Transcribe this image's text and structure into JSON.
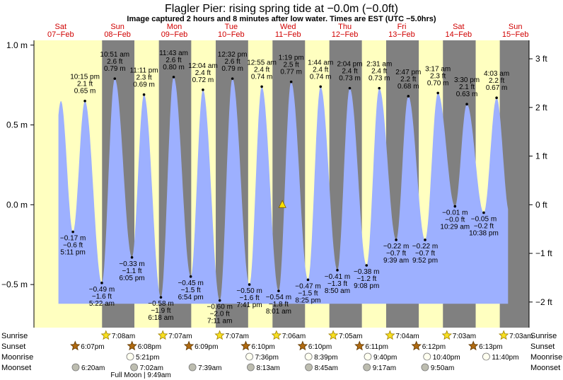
{
  "title": "Flagler Pier: rising  spring tide at −0.0m (−0.0ft)",
  "subtitle": "Image captured 2 hours and 8 minutes after low water. Times are EST (UTC −5.0hrs)",
  "colors": {
    "day": "#ffffc0",
    "night": "#808080",
    "water": "#9db0ff",
    "date_text": "#d00000",
    "marker": "#f8e000"
  },
  "chart_data": {
    "type": "area",
    "x_unit": "days since 2026-02-07 00:00 EST",
    "ylabel_left": "m",
    "ylabel_right": "ft",
    "ylim": [
      -0.77,
      1.03
    ],
    "xlim": [
      -0.47,
      8.24
    ],
    "left_ticks": [
      {
        "v": 1.0,
        "label": "1.0 m"
      },
      {
        "v": 0.5,
        "label": "0.5 m"
      },
      {
        "v": 0.0,
        "label": "0.0 m"
      },
      {
        "v": -0.5,
        "label": "−0.5 m"
      }
    ],
    "right_ticks": [
      {
        "v": 0.9144,
        "label": "3 ft"
      },
      {
        "v": 0.6096,
        "label": "2 ft"
      },
      {
        "v": 0.3048,
        "label": "1 ft"
      },
      {
        "v": 0.0,
        "label": "0 ft"
      },
      {
        "v": -0.3048,
        "label": "−1 ft"
      },
      {
        "v": -0.6096,
        "label": "−2 ft"
      }
    ],
    "days": [
      {
        "day": "Sat",
        "date": "07−Feb"
      },
      {
        "day": "Sun",
        "date": "08−Feb"
      },
      {
        "day": "Mon",
        "date": "09−Feb"
      },
      {
        "day": "Tue",
        "date": "10−Feb"
      },
      {
        "day": "Wed",
        "date": "11−Feb"
      },
      {
        "day": "Thu",
        "date": "12−Feb"
      },
      {
        "day": "Fri",
        "date": "13−Feb"
      },
      {
        "day": "Sat",
        "date": "14−Feb"
      },
      {
        "day": "Sun",
        "date": "15−Feb"
      }
    ],
    "now": {
      "x": 3.9,
      "y": 0.0
    },
    "high_tides": [
      {
        "x": 0.427,
        "m": "0.65 m",
        "ft": "2.1 ft",
        "time": "10:15 pm",
        "y": 0.65
      },
      {
        "x": 0.952,
        "m": "0.79 m",
        "ft": "2.6 ft",
        "time": "10:51 am",
        "y": 0.79
      },
      {
        "x": 1.466,
        "m": "0.69 m",
        "ft": "2.3 ft",
        "time": "11:11 pm",
        "y": 0.69
      },
      {
        "x": 1.988,
        "m": "0.80 m",
        "ft": "2.6 ft",
        "time": "11:43 am",
        "y": 0.8
      },
      {
        "x": 2.503,
        "m": "0.72 m",
        "ft": "2.4 ft",
        "time": "12:04 am",
        "y": 0.72
      },
      {
        "x": 3.022,
        "m": "0.79 m",
        "ft": "2.6 ft",
        "time": "12:32 pm",
        "y": 0.79
      },
      {
        "x": 3.538,
        "m": "0.74 m",
        "ft": "2.4 ft",
        "time": "12:55 am",
        "y": 0.74
      },
      {
        "x": 4.055,
        "m": "0.77 m",
        "ft": "2.5 ft",
        "time": "1:19 pm",
        "y": 0.77
      },
      {
        "x": 4.572,
        "m": "0.74 m",
        "ft": "2.4 ft",
        "time": "1:44 am",
        "y": 0.74
      },
      {
        "x": 5.086,
        "m": "0.73 m",
        "ft": "2.4 ft",
        "time": "2:04 pm",
        "y": 0.73
      },
      {
        "x": 5.605,
        "m": "0.73 m",
        "ft": "2.4 ft",
        "time": "2:31 am",
        "y": 0.73
      },
      {
        "x": 6.116,
        "m": "0.68 m",
        "ft": "2.2 ft",
        "time": "2:47 pm",
        "y": 0.68
      },
      {
        "x": 6.637,
        "m": "0.70 m",
        "ft": "2.3 ft",
        "time": "3:17 am",
        "y": 0.7
      },
      {
        "x": 7.146,
        "m": "0.63 m",
        "ft": "2.1 ft",
        "time": "3:30 pm",
        "y": 0.63
      },
      {
        "x": 7.669,
        "m": "0.67 m",
        "ft": "2.2 ft",
        "time": "4:03 am",
        "y": 0.67
      }
    ],
    "low_tides": [
      {
        "x": 0.216,
        "m": "−0.17 m",
        "ft": "−0.6 ft",
        "time": "5:11 pm",
        "y": -0.17
      },
      {
        "x": 0.724,
        "m": "−0.49 m",
        "ft": "−1.6 ft",
        "time": "5:22 am",
        "y": -0.49
      },
      {
        "x": 1.254,
        "m": "−0.33 m",
        "ft": "−1.1 ft",
        "time": "6:05 pm",
        "y": -0.33
      },
      {
        "x": 1.763,
        "m": "−0.58 m",
        "ft": "−1.9 ft",
        "time": "6:18 am",
        "y": -0.58
      },
      {
        "x": 2.288,
        "m": "−0.45 m",
        "ft": "−1.5 ft",
        "time": "6:54 pm",
        "y": -0.45
      },
      {
        "x": 2.799,
        "m": "−0.60 m",
        "ft": "−2.0 ft",
        "time": "7:11 am",
        "y": -0.6
      },
      {
        "x": 3.32,
        "m": "−0.50 m",
        "ft": "−1.6 ft",
        "time": "7:41 pm",
        "y": -0.5
      },
      {
        "x": 3.834,
        "m": "−0.54 m",
        "ft": "−1.8 ft",
        "time": "8:01 am",
        "y": -0.54
      },
      {
        "x": 4.351,
        "m": "−0.47 m",
        "ft": "−1.5 ft",
        "time": "8:25 pm",
        "y": -0.47
      },
      {
        "x": 4.868,
        "m": "−0.41 m",
        "ft": "−1.3 ft",
        "time": "8:50 am",
        "y": -0.41
      },
      {
        "x": 5.381,
        "m": "−0.38 m",
        "ft": "−1.2 ft",
        "time": "9:08 pm",
        "y": -0.38
      },
      {
        "x": 5.902,
        "m": "−0.22 m",
        "ft": "−0.7 ft",
        "time": "9:39 am",
        "y": -0.22
      },
      {
        "x": 6.411,
        "m": "−0.22 m",
        "ft": "−0.7 ft",
        "time": "9:52 pm",
        "y": -0.22
      },
      {
        "x": 6.937,
        "m": "−0.01 m",
        "ft": "−0.0 ft",
        "time": "10:29 am",
        "y": -0.01
      },
      {
        "x": 7.443,
        "m": "−0.05 m",
        "ft": "−0.2 ft",
        "time": "10:38 pm",
        "y": -0.05
      }
    ],
    "night_bands": [
      [
        0.728,
        1.297
      ],
      [
        1.728,
        2.297
      ],
      [
        2.728,
        3.298
      ],
      [
        3.727,
        4.299
      ],
      [
        4.727,
        5.299
      ],
      [
        5.726,
        6.3
      ],
      [
        6.725,
        7.301
      ],
      [
        7.725,
        8.24
      ]
    ],
    "water_extent": [
      -0.04,
      7.87
    ],
    "bottom_rows": {
      "labels": [
        "Sunrise",
        "Sunset",
        "Moonrise",
        "Moonset"
      ],
      "sunrise": [
        {
          "x": 0.797,
          "label": "7:08am"
        },
        {
          "x": 1.797,
          "label": "7:07am"
        },
        {
          "x": 2.797,
          "label": "7:07am"
        },
        {
          "x": 3.796,
          "label": "7:06am"
        },
        {
          "x": 4.795,
          "label": "7:05am"
        },
        {
          "x": 5.794,
          "label": "7:04am"
        },
        {
          "x": 6.794,
          "label": "7:03am"
        },
        {
          "x": 7.794,
          "label": "7:03am"
        }
      ],
      "sunset": [
        {
          "x": 0.255,
          "label": "6:07pm"
        },
        {
          "x": 1.256,
          "label": "6:08pm"
        },
        {
          "x": 2.256,
          "label": "6:09pm"
        },
        {
          "x": 3.257,
          "label": "6:10pm"
        },
        {
          "x": 4.257,
          "label": "6:10pm"
        },
        {
          "x": 5.258,
          "label": "6:11pm"
        },
        {
          "x": 6.258,
          "label": "6:12pm"
        },
        {
          "x": 7.259,
          "label": "6:13pm"
        }
      ],
      "moonrise": [
        {
          "x": 1.223,
          "label": "5:21pm"
        },
        {
          "x": 3.32,
          "label": "7:36pm"
        },
        {
          "x": 4.36,
          "label": "8:39pm"
        },
        {
          "x": 5.403,
          "label": "9:40pm"
        },
        {
          "x": 6.445,
          "label": "10:40pm"
        },
        {
          "x": 7.486,
          "label": "11:40pm"
        }
      ],
      "moonset": [
        {
          "x": 0.264,
          "label": "6:20am"
        },
        {
          "x": 1.292,
          "label": "7:02am"
        },
        {
          "x": 2.319,
          "label": "7:39am"
        },
        {
          "x": 3.343,
          "label": "8:13am"
        },
        {
          "x": 4.365,
          "label": "8:45am"
        },
        {
          "x": 5.387,
          "label": "9:17am"
        },
        {
          "x": 6.41,
          "label": "9:50am"
        }
      ],
      "moon_phase": {
        "x": 1.41,
        "label": "Full Moon | 9:49am"
      }
    }
  }
}
